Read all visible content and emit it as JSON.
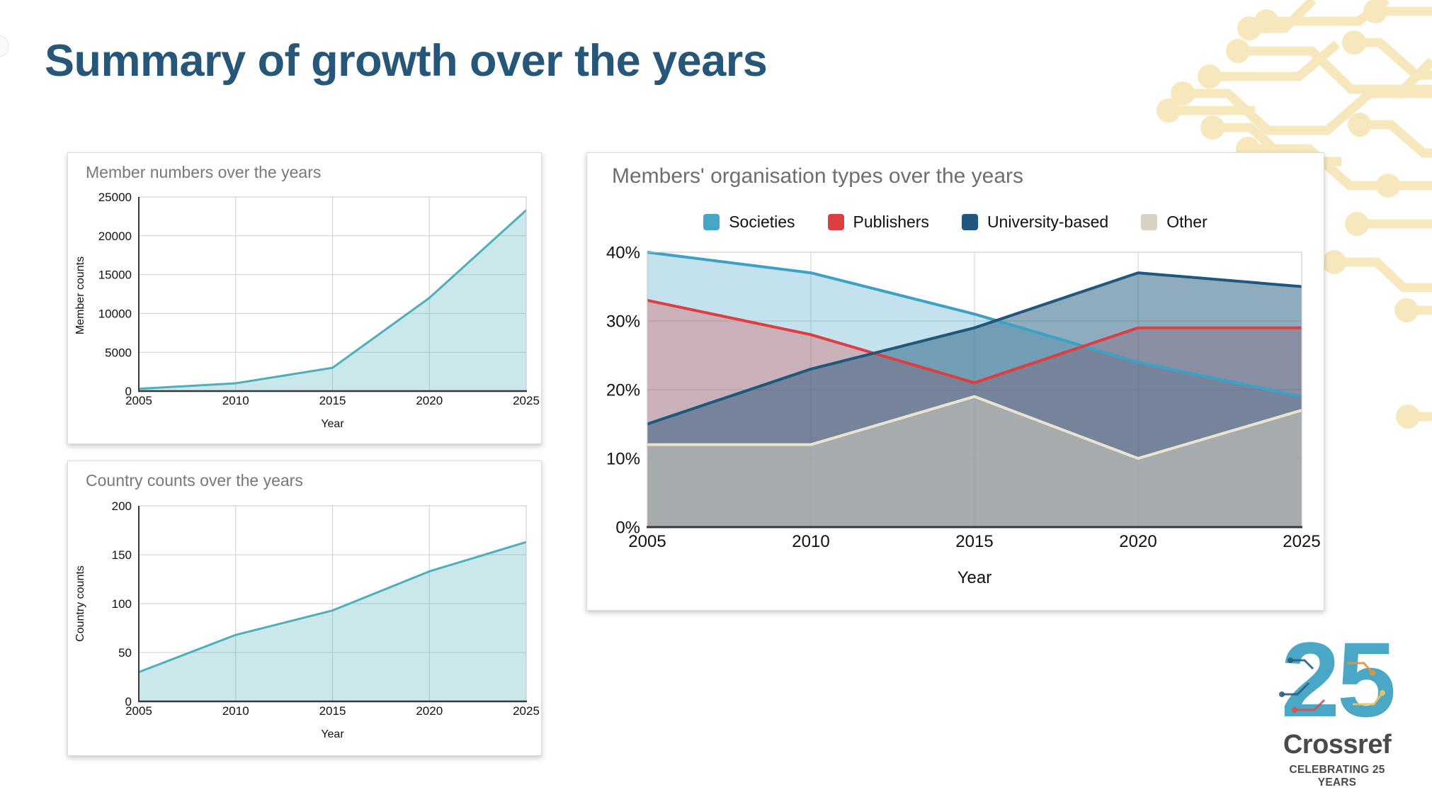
{
  "title": "Summary of growth over the years",
  "chart_data": [
    {
      "id": "members",
      "type": "area",
      "title": "Member numbers over the years",
      "xlabel": "Year",
      "ylabel": "Member counts",
      "x": [
        2005,
        2010,
        2015,
        2020,
        2025
      ],
      "series": [
        {
          "name": "Member counts",
          "color": "#4faebc",
          "values": [
            300,
            1000,
            3000,
            12000,
            23300
          ]
        }
      ],
      "yticks": [
        0,
        5000,
        10000,
        15000,
        20000,
        25000
      ],
      "ylim": [
        0,
        25000
      ],
      "grid": true,
      "legend": "none"
    },
    {
      "id": "countries",
      "type": "area",
      "title": "Country counts over the years",
      "xlabel": "Year",
      "ylabel": "Country counts",
      "x": [
        2005,
        2010,
        2015,
        2020,
        2025
      ],
      "series": [
        {
          "name": "Country counts",
          "color": "#4faebc",
          "values": [
            30,
            68,
            93,
            133,
            163
          ]
        }
      ],
      "yticks": [
        0,
        50,
        100,
        150,
        200
      ],
      "ylim": [
        0,
        200
      ],
      "grid": true,
      "legend": "none"
    },
    {
      "id": "orgtypes",
      "type": "area",
      "title": "Members' organisation types over the years",
      "xlabel": "Year",
      "ylabel": "",
      "x": [
        2005,
        2010,
        2015,
        2020,
        2025
      ],
      "series": [
        {
          "name": "Societies",
          "color": "#45a6c6",
          "line_color": "#3ba2c6",
          "values": [
            40,
            37,
            31,
            24,
            19
          ]
        },
        {
          "name": "Publishers",
          "color": "#dc3e42",
          "line_color": "#de3d42",
          "values": [
            33,
            28,
            21,
            29,
            29
          ]
        },
        {
          "name": "University-based",
          "color": "#1f577e",
          "line_color": "#1f577e",
          "values": [
            15,
            23,
            29,
            37,
            35
          ]
        },
        {
          "name": "Other",
          "color": "#d8d2c2",
          "line_color": "#eae3d2",
          "values": [
            12,
            12,
            19,
            10,
            17
          ]
        }
      ],
      "yticks": [
        0,
        10,
        20,
        30,
        40
      ],
      "ytick_suffix": "%",
      "ylim": [
        0,
        40
      ],
      "grid": true,
      "legend": "top"
    }
  ],
  "logo": {
    "number": "25",
    "brand": "Crossref",
    "tagline": "CELEBRATING 25 YEARS"
  },
  "colors": {
    "slide_title": "#265678",
    "chart_title_gray": "#6e6e6e",
    "teal_line": "#4faebc",
    "societies": "#45a6c6",
    "publishers": "#dc3e42",
    "university_based": "#1f577e",
    "other": "#d8d2c2",
    "circuit_decoration": "#f7e7bc",
    "logo_teal": "#4ba7c6",
    "logo_gray": "#4a4a4a"
  }
}
